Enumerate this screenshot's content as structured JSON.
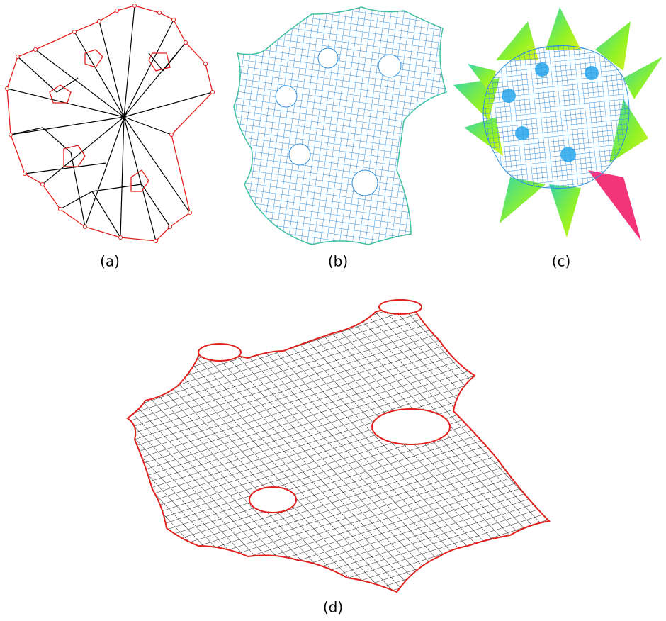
{
  "figure": {
    "panels": [
      {
        "label": "(a)"
      },
      {
        "label": "(b)"
      },
      {
        "label": "(c)"
      },
      {
        "label": "(d)"
      }
    ]
  }
}
